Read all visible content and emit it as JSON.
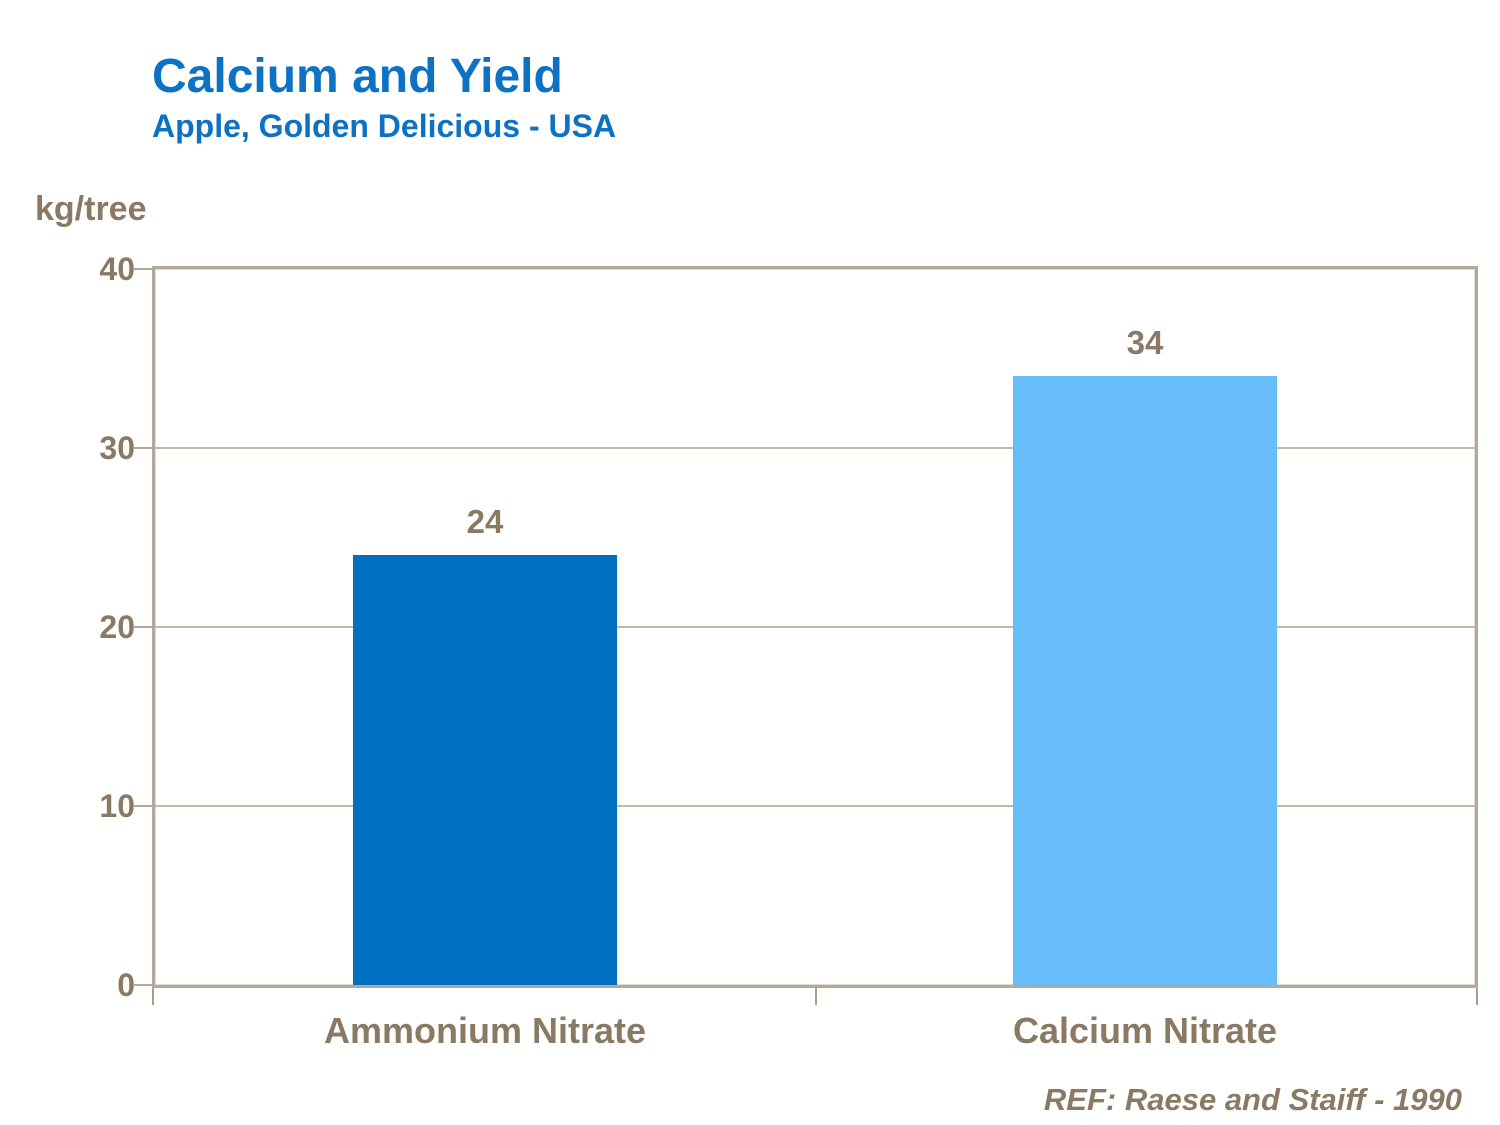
{
  "header": {
    "title": "Calcium and Yield",
    "subtitle": "Apple, Golden Delicious - USA"
  },
  "chart_data": {
    "type": "bar",
    "title": "Calcium and Yield",
    "subtitle": "Apple, Golden Delicious - USA",
    "ylabel": "kg/tree",
    "xlabel": "",
    "categories": [
      "Ammonium Nitrate",
      "Calcium Nitrate"
    ],
    "values": [
      24,
      34
    ],
    "data_labels": [
      "24",
      "34"
    ],
    "bar_colors": [
      "#0070c2",
      "#67bdf9"
    ],
    "ylim": [
      0,
      40
    ],
    "yticks": [
      0,
      10,
      20,
      30,
      40
    ],
    "grid": true,
    "legend_position": "none",
    "reference": "REF: Raese and Staiff - 1990"
  },
  "colors": {
    "title_blue": "#0d72c4",
    "axis_text_brown": "#8a7a63",
    "frame_tan": "#b3a89b",
    "gridline_tan": "#c1b7ab",
    "background": "#ffffff"
  }
}
